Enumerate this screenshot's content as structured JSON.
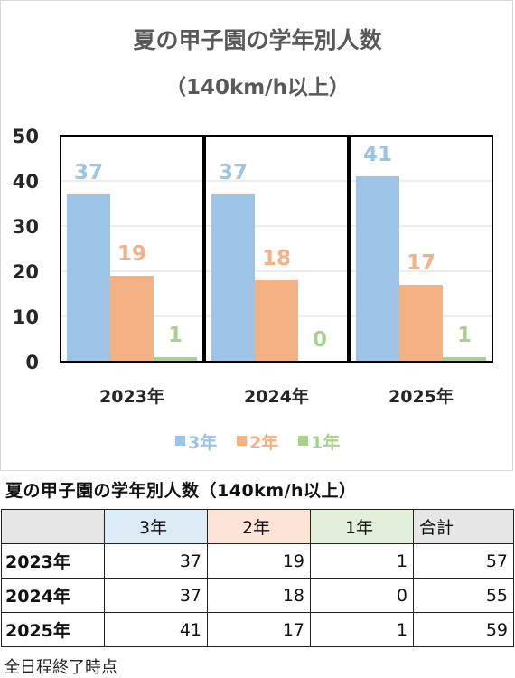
{
  "chart_data": {
    "type": "bar",
    "title": "夏の甲子園の学年別人数",
    "subtitle": "（140km/h以上）",
    "categories": [
      "2023年",
      "2024年",
      "2025年"
    ],
    "series": [
      {
        "name": "3年",
        "values": [
          37,
          37,
          41
        ],
        "color": "#9dc3e6",
        "label_color": "#9dc3e6"
      },
      {
        "name": "2年",
        "values": [
          19,
          18,
          17
        ],
        "color": "#f4b183",
        "label_color": "#f4b183"
      },
      {
        "name": "1年",
        "values": [
          1,
          0,
          1
        ],
        "color": "#a9d18e",
        "label_color": "#a9d18e"
      }
    ],
    "ylim": [
      0,
      50
    ],
    "yticks": [
      "0",
      "10",
      "20",
      "30",
      "40",
      "50"
    ],
    "grid": true,
    "legend_position": "bottom"
  },
  "table": {
    "title": "夏の甲子園の学年別人数（140km/h以上）",
    "headers": [
      "",
      "3年",
      "2年",
      "1年",
      "合計"
    ],
    "header_colors": [
      "#e7e6e6",
      "#ddebf7",
      "#fce4d6",
      "#e2efda",
      "#e7e6e6"
    ],
    "rows": [
      {
        "label": "2023年",
        "values": [
          "37",
          "19",
          "1",
          "57"
        ]
      },
      {
        "label": "2024年",
        "values": [
          "37",
          "18",
          "0",
          "55"
        ]
      },
      {
        "label": "2025年",
        "values": [
          "41",
          "17",
          "1",
          "59"
        ]
      }
    ]
  },
  "footnote": "全日程終了時点"
}
